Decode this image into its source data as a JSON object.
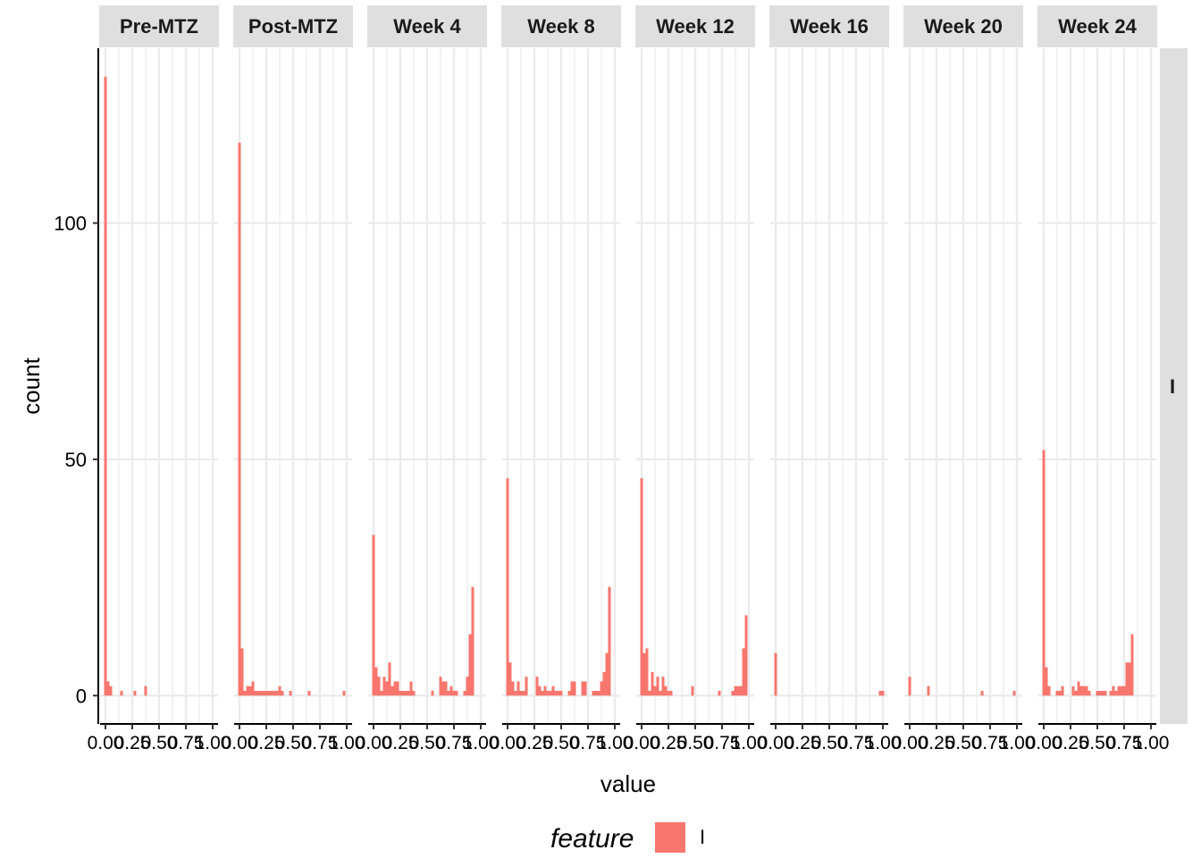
{
  "chart_data": {
    "type": "bar",
    "chart_kind": "faceted histogram",
    "xlabel": "value",
    "ylabel": "count",
    "x_ticks": [
      "0.00",
      "0.25",
      "0.50",
      "0.75",
      "1.00"
    ],
    "y_ticks": [
      0,
      50,
      100
    ],
    "xlim": [
      -0.05,
      1.05
    ],
    "ylim": [
      -6,
      137
    ],
    "bin_width": 0.025,
    "grid": true,
    "legend_placement": "bottom",
    "legend": {
      "title": "feature",
      "entries": [
        {
          "label": "I",
          "color": "#F8766D"
        }
      ]
    },
    "fill_color": "#F8766D",
    "strip_right_label": "I",
    "facets": [
      {
        "label": "Pre-MTZ",
        "bars": [
          [
            0.0,
            131
          ],
          [
            0.025,
            3
          ],
          [
            0.05,
            2
          ],
          [
            0.15,
            1
          ],
          [
            0.275,
            1
          ],
          [
            0.375,
            2
          ]
        ]
      },
      {
        "label": "Post-MTZ",
        "bars": [
          [
            0.0,
            117
          ],
          [
            0.025,
            10
          ],
          [
            0.05,
            1
          ],
          [
            0.075,
            2
          ],
          [
            0.1,
            2
          ],
          [
            0.125,
            3
          ],
          [
            0.15,
            1
          ],
          [
            0.175,
            1
          ],
          [
            0.2,
            1
          ],
          [
            0.225,
            1
          ],
          [
            0.25,
            1
          ],
          [
            0.275,
            1
          ],
          [
            0.3,
            1
          ],
          [
            0.325,
            1
          ],
          [
            0.35,
            1
          ],
          [
            0.375,
            2
          ],
          [
            0.4,
            1
          ],
          [
            0.475,
            1
          ],
          [
            0.65,
            1
          ],
          [
            0.975,
            1
          ]
        ]
      },
      {
        "label": "Week 4",
        "bars": [
          [
            0.0,
            34
          ],
          [
            0.025,
            6
          ],
          [
            0.05,
            4
          ],
          [
            0.075,
            1
          ],
          [
            0.1,
            4
          ],
          [
            0.125,
            3
          ],
          [
            0.15,
            7
          ],
          [
            0.175,
            2
          ],
          [
            0.2,
            3
          ],
          [
            0.225,
            3
          ],
          [
            0.25,
            1
          ],
          [
            0.275,
            1
          ],
          [
            0.3,
            1
          ],
          [
            0.325,
            1
          ],
          [
            0.35,
            3
          ],
          [
            0.375,
            1
          ],
          [
            0.55,
            1
          ],
          [
            0.625,
            4
          ],
          [
            0.65,
            3
          ],
          [
            0.675,
            3
          ],
          [
            0.7,
            1
          ],
          [
            0.725,
            2
          ],
          [
            0.75,
            1
          ],
          [
            0.775,
            1
          ],
          [
            0.85,
            1
          ],
          [
            0.875,
            4
          ],
          [
            0.9,
            13
          ],
          [
            0.925,
            23
          ]
        ]
      },
      {
        "label": "Week 8",
        "bars": [
          [
            0.0,
            46
          ],
          [
            0.025,
            7
          ],
          [
            0.05,
            3
          ],
          [
            0.075,
            1
          ],
          [
            0.1,
            3
          ],
          [
            0.125,
            1
          ],
          [
            0.15,
            1
          ],
          [
            0.175,
            4
          ],
          [
            0.275,
            4
          ],
          [
            0.3,
            2
          ],
          [
            0.325,
            1
          ],
          [
            0.35,
            2
          ],
          [
            0.375,
            1
          ],
          [
            0.4,
            1
          ],
          [
            0.425,
            2
          ],
          [
            0.45,
            1
          ],
          [
            0.475,
            1
          ],
          [
            0.5,
            1
          ],
          [
            0.575,
            1
          ],
          [
            0.6,
            3
          ],
          [
            0.625,
            3
          ],
          [
            0.7,
            3
          ],
          [
            0.725,
            3
          ],
          [
            0.8,
            1
          ],
          [
            0.825,
            1
          ],
          [
            0.85,
            1
          ],
          [
            0.875,
            3
          ],
          [
            0.9,
            5
          ],
          [
            0.925,
            9
          ],
          [
            0.95,
            23
          ]
        ]
      },
      {
        "label": "Week 12",
        "bars": [
          [
            0.0,
            46
          ],
          [
            0.025,
            9
          ],
          [
            0.05,
            10
          ],
          [
            0.075,
            1
          ],
          [
            0.1,
            5
          ],
          [
            0.125,
            2
          ],
          [
            0.15,
            4
          ],
          [
            0.175,
            1
          ],
          [
            0.2,
            4
          ],
          [
            0.225,
            2
          ],
          [
            0.25,
            1
          ],
          [
            0.275,
            1
          ],
          [
            0.475,
            2
          ],
          [
            0.725,
            1
          ],
          [
            0.85,
            1
          ],
          [
            0.875,
            2
          ],
          [
            0.9,
            2
          ],
          [
            0.925,
            2
          ],
          [
            0.95,
            10
          ],
          [
            0.975,
            17
          ]
        ]
      },
      {
        "label": "Week 16",
        "bars": [
          [
            0.0,
            9
          ],
          [
            0.975,
            1
          ],
          [
            1.0,
            1
          ]
        ]
      },
      {
        "label": "Week 20",
        "bars": [
          [
            0.0,
            4
          ],
          [
            0.175,
            2
          ],
          [
            0.675,
            1
          ],
          [
            0.975,
            1
          ]
        ]
      },
      {
        "label": "Week 24",
        "bars": [
          [
            0.0,
            52
          ],
          [
            0.025,
            6
          ],
          [
            0.05,
            2
          ],
          [
            0.125,
            1
          ],
          [
            0.15,
            1
          ],
          [
            0.175,
            2
          ],
          [
            0.275,
            2
          ],
          [
            0.3,
            1
          ],
          [
            0.325,
            3
          ],
          [
            0.35,
            2
          ],
          [
            0.375,
            2
          ],
          [
            0.4,
            2
          ],
          [
            0.425,
            1
          ],
          [
            0.5,
            1
          ],
          [
            0.525,
            1
          ],
          [
            0.55,
            1
          ],
          [
            0.575,
            1
          ],
          [
            0.625,
            1
          ],
          [
            0.65,
            2
          ],
          [
            0.675,
            1
          ],
          [
            0.7,
            2
          ],
          [
            0.725,
            2
          ],
          [
            0.75,
            2
          ],
          [
            0.775,
            7
          ],
          [
            0.8,
            7
          ],
          [
            0.825,
            13
          ]
        ]
      }
    ]
  }
}
